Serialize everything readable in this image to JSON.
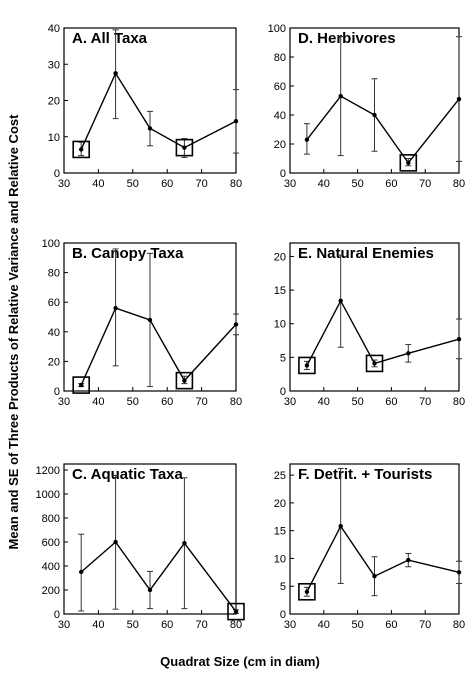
{
  "figure": {
    "ylabel": "Mean and SE of Three Products of Relative Variance and Relative Cost",
    "xlabel": "Quadrat Size (cm in diam)"
  },
  "chart_data": [
    {
      "type": "line",
      "title": "A. All Taxa",
      "x": [
        35,
        45,
        55,
        65,
        80
      ],
      "y": [
        6.5,
        27.5,
        12.3,
        7.0,
        14.3
      ],
      "err_low": [
        4.8,
        15.0,
        7.5,
        4.3,
        5.5
      ],
      "err_high": [
        8.5,
        39.5,
        17.0,
        9.5,
        23.0
      ],
      "boxed_x": [
        35,
        65
      ],
      "xlim": [
        30,
        80
      ],
      "ylim": [
        0,
        40
      ],
      "xticks": [
        30,
        40,
        50,
        60,
        70,
        80
      ],
      "yticks": [
        0,
        10,
        20,
        30,
        40
      ],
      "xlabel": "",
      "ylabel": ""
    },
    {
      "type": "line",
      "title": "D. Herbivores",
      "x": [
        35,
        45,
        55,
        65,
        80
      ],
      "y": [
        23,
        53,
        40,
        7,
        51
      ],
      "err_low": [
        13,
        12,
        15,
        5,
        8
      ],
      "err_high": [
        34,
        94,
        65,
        10,
        94
      ],
      "boxed_x": [
        65
      ],
      "xlim": [
        30,
        80
      ],
      "ylim": [
        0,
        100
      ],
      "xticks": [
        30,
        40,
        50,
        60,
        70,
        80
      ],
      "yticks": [
        0,
        20,
        40,
        60,
        80,
        100
      ],
      "xlabel": "",
      "ylabel": ""
    },
    {
      "type": "line",
      "title": "B. Canopy Taxa",
      "x": [
        35,
        45,
        55,
        65,
        80
      ],
      "y": [
        4,
        56,
        48,
        7,
        45
      ],
      "err_low": [
        3,
        17,
        3,
        5,
        38
      ],
      "err_high": [
        5,
        96,
        93,
        10,
        52
      ],
      "boxed_x": [
        35,
        65
      ],
      "xlim": [
        30,
        80
      ],
      "ylim": [
        0,
        100
      ],
      "xticks": [
        30,
        40,
        50,
        60,
        70,
        80
      ],
      "yticks": [
        0,
        20,
        40,
        60,
        80,
        100
      ],
      "xlabel": "",
      "ylabel": ""
    },
    {
      "type": "line",
      "title": "E. Natural Enemies",
      "x": [
        35,
        45,
        55,
        65,
        80
      ],
      "y": [
        3.8,
        13.4,
        4.1,
        5.6,
        7.7
      ],
      "err_low": [
        3.2,
        6.5,
        3.6,
        4.3,
        4.8
      ],
      "err_high": [
        4.4,
        20.2,
        4.6,
        6.9,
        10.7
      ],
      "boxed_x": [
        35,
        55
      ],
      "xlim": [
        30,
        80
      ],
      "ylim": [
        0,
        22
      ],
      "xticks": [
        30,
        40,
        50,
        60,
        70,
        80
      ],
      "yticks": [
        0,
        5,
        10,
        15,
        20
      ],
      "xlabel": "",
      "ylabel": ""
    },
    {
      "type": "line",
      "title": "C. Aquatic Taxa",
      "x": [
        35,
        45,
        55,
        65,
        80
      ],
      "y": [
        350,
        600,
        200,
        590,
        20
      ],
      "err_low": [
        25,
        40,
        45,
        45,
        5
      ],
      "err_high": [
        665,
        1155,
        355,
        1135,
        35
      ],
      "boxed_x": [
        80
      ],
      "xlim": [
        30,
        80
      ],
      "ylim": [
        0,
        1250
      ],
      "xticks": [
        30,
        40,
        50,
        60,
        70,
        80
      ],
      "yticks": [
        0,
        200,
        400,
        600,
        800,
        1000,
        1200
      ],
      "xlabel": "",
      "ylabel": ""
    },
    {
      "type": "line",
      "title": "F. Detrit. + Tourists",
      "x": [
        35,
        45,
        55,
        65,
        80
      ],
      "y": [
        4.0,
        15.8,
        6.8,
        9.7,
        7.5
      ],
      "err_low": [
        3.2,
        5.5,
        3.3,
        8.5,
        5.5
      ],
      "err_high": [
        4.8,
        26.2,
        10.3,
        10.9,
        9.5
      ],
      "boxed_x": [
        35
      ],
      "xlim": [
        30,
        80
      ],
      "ylim": [
        0,
        27
      ],
      "xticks": [
        30,
        40,
        50,
        60,
        70,
        80
      ],
      "yticks": [
        0,
        5,
        10,
        15,
        20,
        25
      ],
      "xlabel": "",
      "ylabel": ""
    }
  ]
}
